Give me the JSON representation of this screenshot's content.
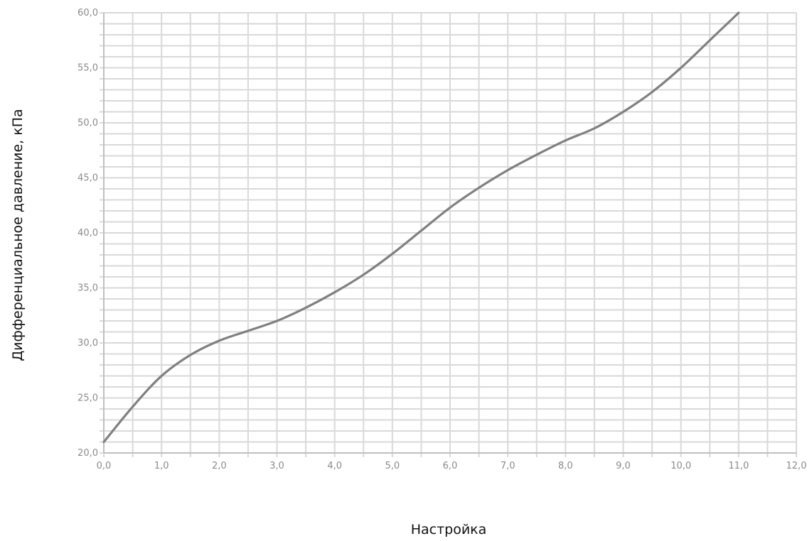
{
  "chart_data": {
    "type": "line",
    "title": "",
    "xlabel": "Настройка",
    "ylabel": "Дифференциальное давление, кПа",
    "xlim": [
      0,
      12
    ],
    "ylim": [
      20,
      60
    ],
    "x_ticks": [
      "0,0",
      "1,0",
      "2,0",
      "3,0",
      "4,0",
      "5,0",
      "6,0",
      "7,0",
      "8,0",
      "9,0",
      "10,0",
      "11,0",
      "12,0"
    ],
    "y_ticks": [
      "20,0",
      "25,0",
      "30,0",
      "35,0",
      "40,0",
      "45,0",
      "50,0",
      "55,0",
      "60,0"
    ],
    "grid": true,
    "legend": "none",
    "colors": {
      "line": "#808080",
      "grid": "#d9d9d9",
      "axis": "#bfbfbf",
      "tick_text": "#8a8a8a"
    },
    "series": [
      {
        "x": [
          0,
          0.5,
          1,
          1.5,
          2,
          2.5,
          3,
          3.5,
          4,
          4.5,
          5,
          5.5,
          6,
          6.5,
          7,
          7.5,
          8,
          8.5,
          9,
          9.5,
          10,
          10.5,
          11
        ],
        "y": [
          21.0,
          24.2,
          27.0,
          28.9,
          30.2,
          31.1,
          32.0,
          33.2,
          34.6,
          36.2,
          38.1,
          40.2,
          42.3,
          44.1,
          45.7,
          47.1,
          48.4,
          49.5,
          51.0,
          52.8,
          55.0,
          57.5,
          60.0
        ]
      }
    ]
  }
}
